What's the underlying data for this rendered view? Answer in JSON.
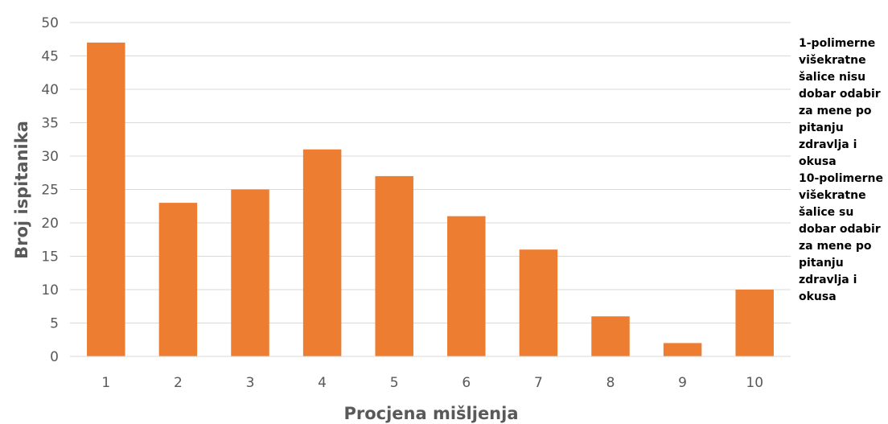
{
  "chart_data": {
    "type": "bar",
    "categories": [
      "1",
      "2",
      "3",
      "4",
      "5",
      "6",
      "7",
      "8",
      "9",
      "10"
    ],
    "values": [
      47,
      23,
      25,
      31,
      27,
      21,
      16,
      6,
      2,
      10
    ],
    "xlabel": "Procjena mišljenja",
    "ylabel": "Broj ispitanika",
    "ylim": [
      0,
      50
    ],
    "yticks": [
      0,
      5,
      10,
      15,
      20,
      25,
      30,
      35,
      40,
      45,
      50
    ],
    "grid": true,
    "bar_color": "#ED7D31",
    "grid_color": "#D9D9D9",
    "annotations": [
      "1-polimerne višekratne šalice nisu dobar odabir za mene po pitanju zdravlja i okusa",
      "10-polimerne višekratne šalice su dobar odabir za mene po pitanju zdravlja i okusa"
    ]
  }
}
